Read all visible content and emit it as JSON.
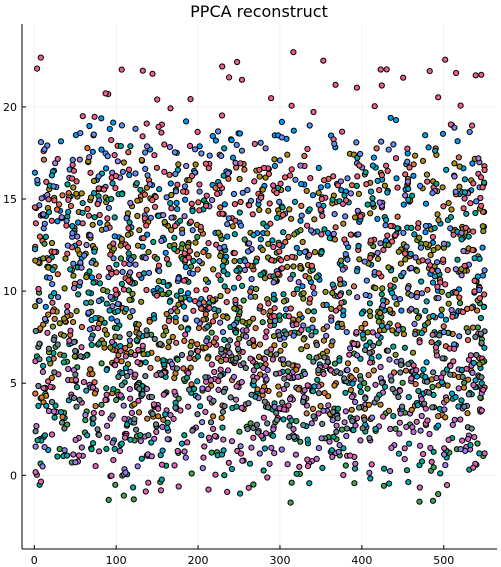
{
  "chart_data": {
    "type": "scatter",
    "title": "PPCA reconstruct",
    "xlabel": "",
    "ylabel": "",
    "xlim": [
      -15,
      565
    ],
    "ylim": [
      -4,
      24.5
    ],
    "xticks": [
      {
        "value": 0,
        "label": "0"
      },
      {
        "value": 100,
        "label": "100"
      },
      {
        "value": 200,
        "label": "200"
      },
      {
        "value": 300,
        "label": "300"
      },
      {
        "value": 400,
        "label": "400"
      },
      {
        "value": 500,
        "label": "500"
      }
    ],
    "yticks": [
      {
        "value": 0,
        "label": "0"
      },
      {
        "value": 5,
        "label": "5"
      },
      {
        "value": 10,
        "label": "10"
      },
      {
        "value": 15,
        "label": "15"
      },
      {
        "value": 20,
        "label": "20"
      }
    ],
    "grid": true,
    "legend": "none",
    "x_range_of_points": [
      0,
      550
    ],
    "series": [
      {
        "color": "#009AFA",
        "y_band": [
          8.5,
          19.5
        ]
      },
      {
        "color": "#E36F47",
        "y_band": [
          3.5,
          18.0
        ]
      },
      {
        "color": "#3EA44E",
        "y_band": [
          -1.5,
          13.0
        ]
      },
      {
        "color": "#C271D2",
        "y_band": [
          0.5,
          6.0
        ]
      },
      {
        "color": "#AC8D18",
        "y_band": [
          11.0,
          17.5
        ]
      },
      {
        "color": "#00A9AD",
        "y_band": [
          -1.0,
          18.0
        ]
      },
      {
        "color": "#ED5E93",
        "y_band": [
          5.0,
          23.0
        ]
      },
      {
        "color": "#C68225",
        "y_band": [
          3.0,
          9.0
        ]
      },
      {
        "color": "#00A98D",
        "y_band": [
          0.0,
          16.5
        ]
      },
      {
        "color": "#8E971D",
        "y_band": [
          6.0,
          14.0
        ]
      },
      {
        "color": "#00A8CB",
        "y_band": [
          1.0,
          17.0
        ]
      },
      {
        "color": "#9B7FE9",
        "y_band": [
          0.0,
          18.0
        ]
      },
      {
        "color": "#618DF6",
        "y_band": [
          7.0,
          19.0
        ]
      },
      {
        "color": "#F05F73",
        "y_band": [
          8.0,
          17.0
        ]
      },
      {
        "color": "#DD64B5",
        "y_band": [
          -1.0,
          8.0
        ]
      },
      {
        "color": "#6A8691",
        "y_band": [
          2.0,
          8.0
        ]
      }
    ]
  }
}
